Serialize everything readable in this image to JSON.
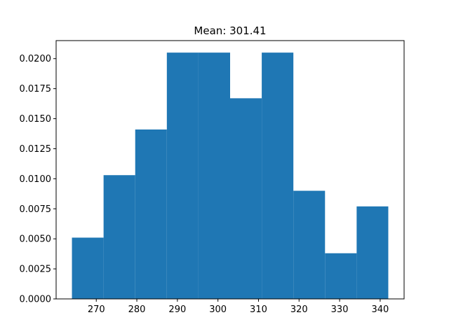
{
  "chart_data": {
    "type": "bar",
    "subtype": "histogram",
    "title": "Mean: 301.41",
    "xlabel": "",
    "ylabel": "",
    "bin_edges": [
      264.0,
      271.8,
      279.6,
      287.4,
      295.2,
      303.0,
      310.8,
      318.6,
      326.4,
      334.2,
      342.0
    ],
    "values": [
      0.0051,
      0.0103,
      0.0141,
      0.0205,
      0.0205,
      0.0167,
      0.0205,
      0.009,
      0.0038,
      0.0077
    ],
    "xlim": [
      260.1,
      345.9
    ],
    "ylim": [
      0,
      0.0215
    ],
    "x_ticks": [
      270,
      280,
      290,
      300,
      310,
      320,
      330,
      340
    ],
    "x_tick_labels": [
      "270",
      "280",
      "290",
      "300",
      "310",
      "320",
      "330",
      "340"
    ],
    "y_ticks": [
      0,
      0.0025,
      0.005,
      0.0075,
      0.01,
      0.0125,
      0.015,
      0.0175,
      0.02
    ],
    "y_tick_labels": [
      "0.0000",
      "0.0025",
      "0.0050",
      "0.0075",
      "0.0100",
      "0.0125",
      "0.0150",
      "0.0175",
      "0.0200"
    ],
    "grid": false,
    "bar_color": "#1f77b4"
  }
}
